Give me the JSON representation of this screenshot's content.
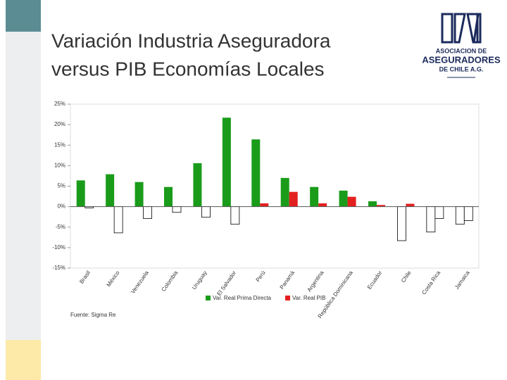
{
  "logo": {
    "lines": [
      "ASOCIACION DE",
      "ASEGURADORES",
      "DE CHILE A.G."
    ]
  },
  "chart_data": {
    "type": "bar",
    "title": "Variación Industria Aseguradora versus PIB Economías Locales",
    "source": "Fuente: Sigma Re",
    "categories": [
      "Brasil",
      "México",
      "Venezuela",
      "Colombia",
      "Uruguay",
      "El Salvador",
      "Perú",
      "Panamá",
      "Argentina",
      "República Dominicana",
      "Ecuador",
      "Chile",
      "Costa Rica",
      "Jamaica"
    ],
    "series": [
      {
        "name": "Var. Real Prima Directa",
        "color": "#1a9c1a",
        "negative_color": "#ffffff",
        "values": [
          6.4,
          7.9,
          6.0,
          4.8,
          10.6,
          21.7,
          16.4,
          7.0,
          4.8,
          3.9,
          1.3,
          -8.3,
          -6.2,
          -4.3
        ]
      },
      {
        "name": "Var. Real PIB",
        "color": "#e32020",
        "negative_color": "#ffffff",
        "values": [
          -0.3,
          -6.4,
          -2.9,
          -1.4,
          -2.6,
          -4.3,
          0.8,
          3.6,
          0.8,
          2.4,
          0.4,
          0.7,
          -2.9,
          -3.4
        ]
      }
    ],
    "ylim": [
      -15,
      25
    ],
    "yticks": [
      {
        "value": -15,
        "label": "-15%"
      },
      {
        "value": -10,
        "label": "-10%"
      },
      {
        "value": -5,
        "label": "-5%"
      },
      {
        "value": 0,
        "label": "0%"
      },
      {
        "value": 5,
        "label": "5%"
      },
      {
        "value": 10,
        "label": "10%"
      },
      {
        "value": 15,
        "label": "15%"
      },
      {
        "value": 20,
        "label": "20%"
      },
      {
        "value": 25,
        "label": "25%"
      }
    ],
    "legend": "bottom"
  }
}
